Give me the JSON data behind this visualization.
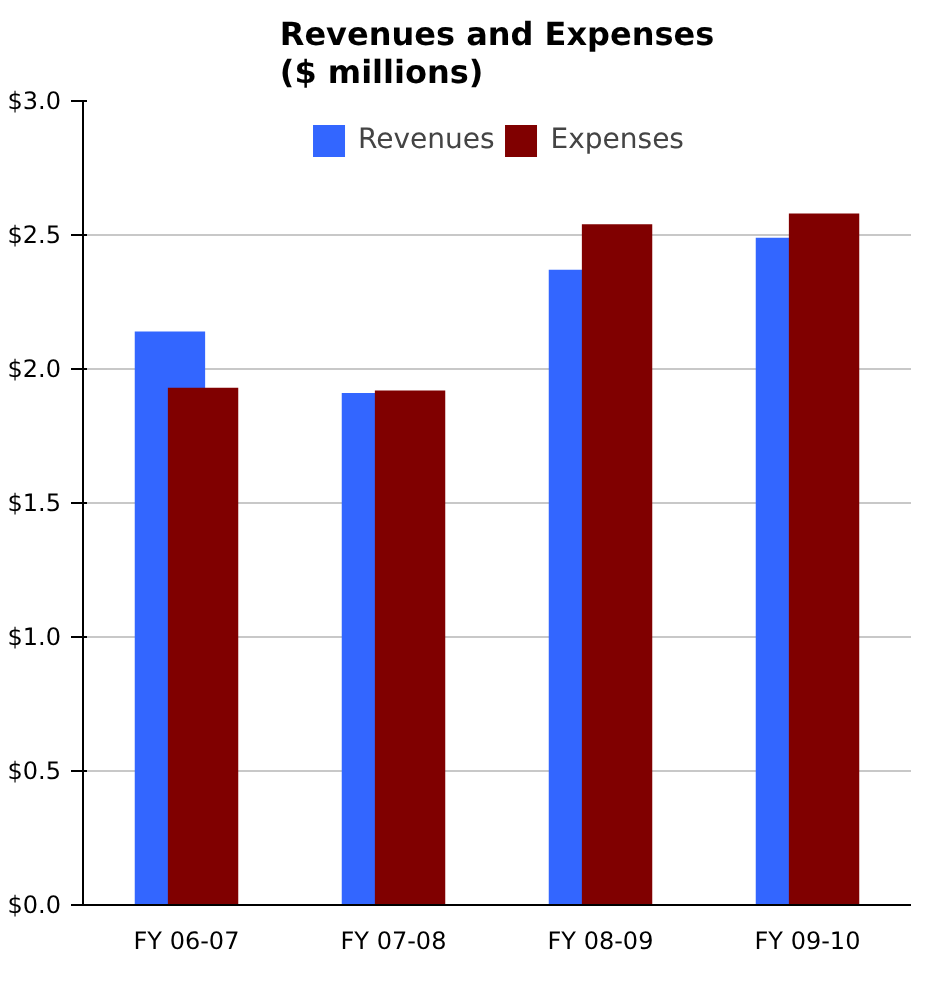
{
  "chart_data": {
    "type": "bar",
    "title": "Revenues and Expenses\n($ millions)",
    "categories": [
      "FY 06-07",
      "FY 07-08",
      "FY 08-09",
      "FY 09-10"
    ],
    "series": [
      {
        "name": "Revenues",
        "color": "#3366ff",
        "values": [
          2.14,
          1.91,
          2.37,
          2.49
        ]
      },
      {
        "name": "Expenses",
        "color": "#800000",
        "values": [
          1.93,
          1.92,
          2.54,
          2.58
        ]
      }
    ],
    "ylim": [
      0,
      3.0
    ],
    "yticks": [
      {
        "value": 0,
        "label": "$0.0"
      },
      {
        "value": 0.5,
        "label": "$0.5"
      },
      {
        "value": 1.0,
        "label": "$1.0"
      },
      {
        "value": 1.5,
        "label": "$1.5"
      },
      {
        "value": 2.0,
        "label": "$2.0"
      },
      {
        "value": 2.5,
        "label": "$2.5"
      },
      {
        "value": 3.0,
        "label": "$3.0"
      }
    ],
    "grid": "y",
    "legend": "top"
  }
}
